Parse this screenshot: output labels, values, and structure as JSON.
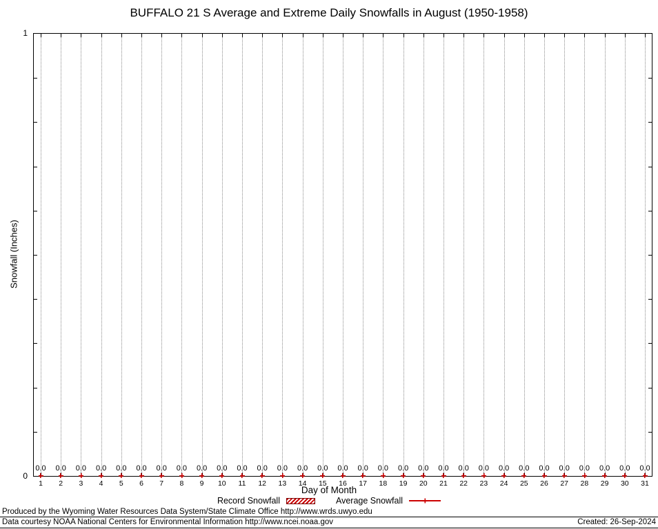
{
  "chart_data": {
    "type": "line",
    "title": "BUFFALO 21 S Average and Extreme Daily Snowfalls in August (1950-1958)",
    "xlabel": "Day of Month",
    "ylabel": "Snowfall (Inches)",
    "ylim": [
      0,
      1
    ],
    "yticks": [
      "0",
      "1"
    ],
    "grid": "vertical-dotted",
    "legend_position": "bottom-center",
    "point_label_decimals": 1,
    "x": [
      1,
      2,
      3,
      4,
      5,
      6,
      7,
      8,
      9,
      10,
      11,
      12,
      13,
      14,
      15,
      16,
      17,
      18,
      19,
      20,
      21,
      22,
      23,
      24,
      25,
      26,
      27,
      28,
      29,
      30,
      31
    ],
    "series": [
      {
        "name": "Record Snowfall",
        "style": "boxes-hatched",
        "color": "#cc0000",
        "values": [
          0,
          0,
          0,
          0,
          0,
          0,
          0,
          0,
          0,
          0,
          0,
          0,
          0,
          0,
          0,
          0,
          0,
          0,
          0,
          0,
          0,
          0,
          0,
          0,
          0,
          0,
          0,
          0,
          0,
          0,
          0
        ]
      },
      {
        "name": "Average Snowfall",
        "style": "linespoints",
        "color": "#cc0000",
        "values": [
          0,
          0,
          0,
          0,
          0,
          0,
          0,
          0,
          0,
          0,
          0,
          0,
          0,
          0,
          0,
          0,
          0,
          0,
          0,
          0,
          0,
          0,
          0,
          0,
          0,
          0,
          0,
          0,
          0,
          0,
          0
        ]
      }
    ]
  },
  "colors": {
    "series": "#cc0000",
    "grid": "#8a8a8a",
    "axis": "#000000",
    "background": "#ffffff"
  },
  "footer": {
    "line1": "Produced by the Wyoming Water Resources Data System/State Climate Office http://www.wrds.uwyo.edu",
    "line2": "Data courtesy NOAA National Centers for Environmental Information http://www.ncei.noaa.gov",
    "created": "Created: 26-Sep-2024"
  }
}
